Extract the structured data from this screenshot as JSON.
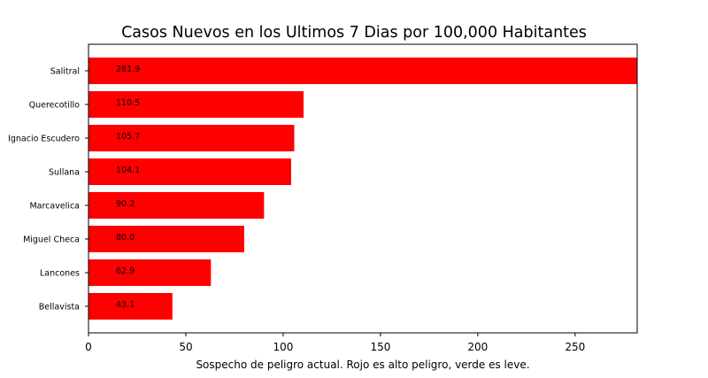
{
  "chart_data": {
    "type": "bar",
    "orientation": "horizontal",
    "title": "Casos Nuevos en los Ultimos 7 Dias por 100,000 Habitantes",
    "xlabel": "Sospecho de peligro actual. Rojo es alto peligro, verde es leve.",
    "ylabel": "",
    "categories": [
      "Salitral",
      "Querecotillo",
      "Ignacio Escudero",
      "Sullana",
      "Marcavelica",
      "Miguel Checa",
      "Lancones",
      "Bellavista"
    ],
    "values": [
      281.9,
      110.5,
      105.7,
      104.1,
      90.2,
      80.0,
      62.9,
      43.1
    ],
    "value_labels": [
      "281.9",
      "110.5",
      "105.7",
      "104.1",
      "90.2",
      "80.0",
      "62.9",
      "43.1"
    ],
    "xlim": [
      0,
      281.9
    ],
    "xticks": [
      0,
      50,
      100,
      150,
      200,
      250
    ],
    "xtick_labels": [
      "0",
      "50",
      "100",
      "150",
      "200",
      "250"
    ],
    "bar_color": "#ff0000",
    "grid": false,
    "legend": "none"
  }
}
